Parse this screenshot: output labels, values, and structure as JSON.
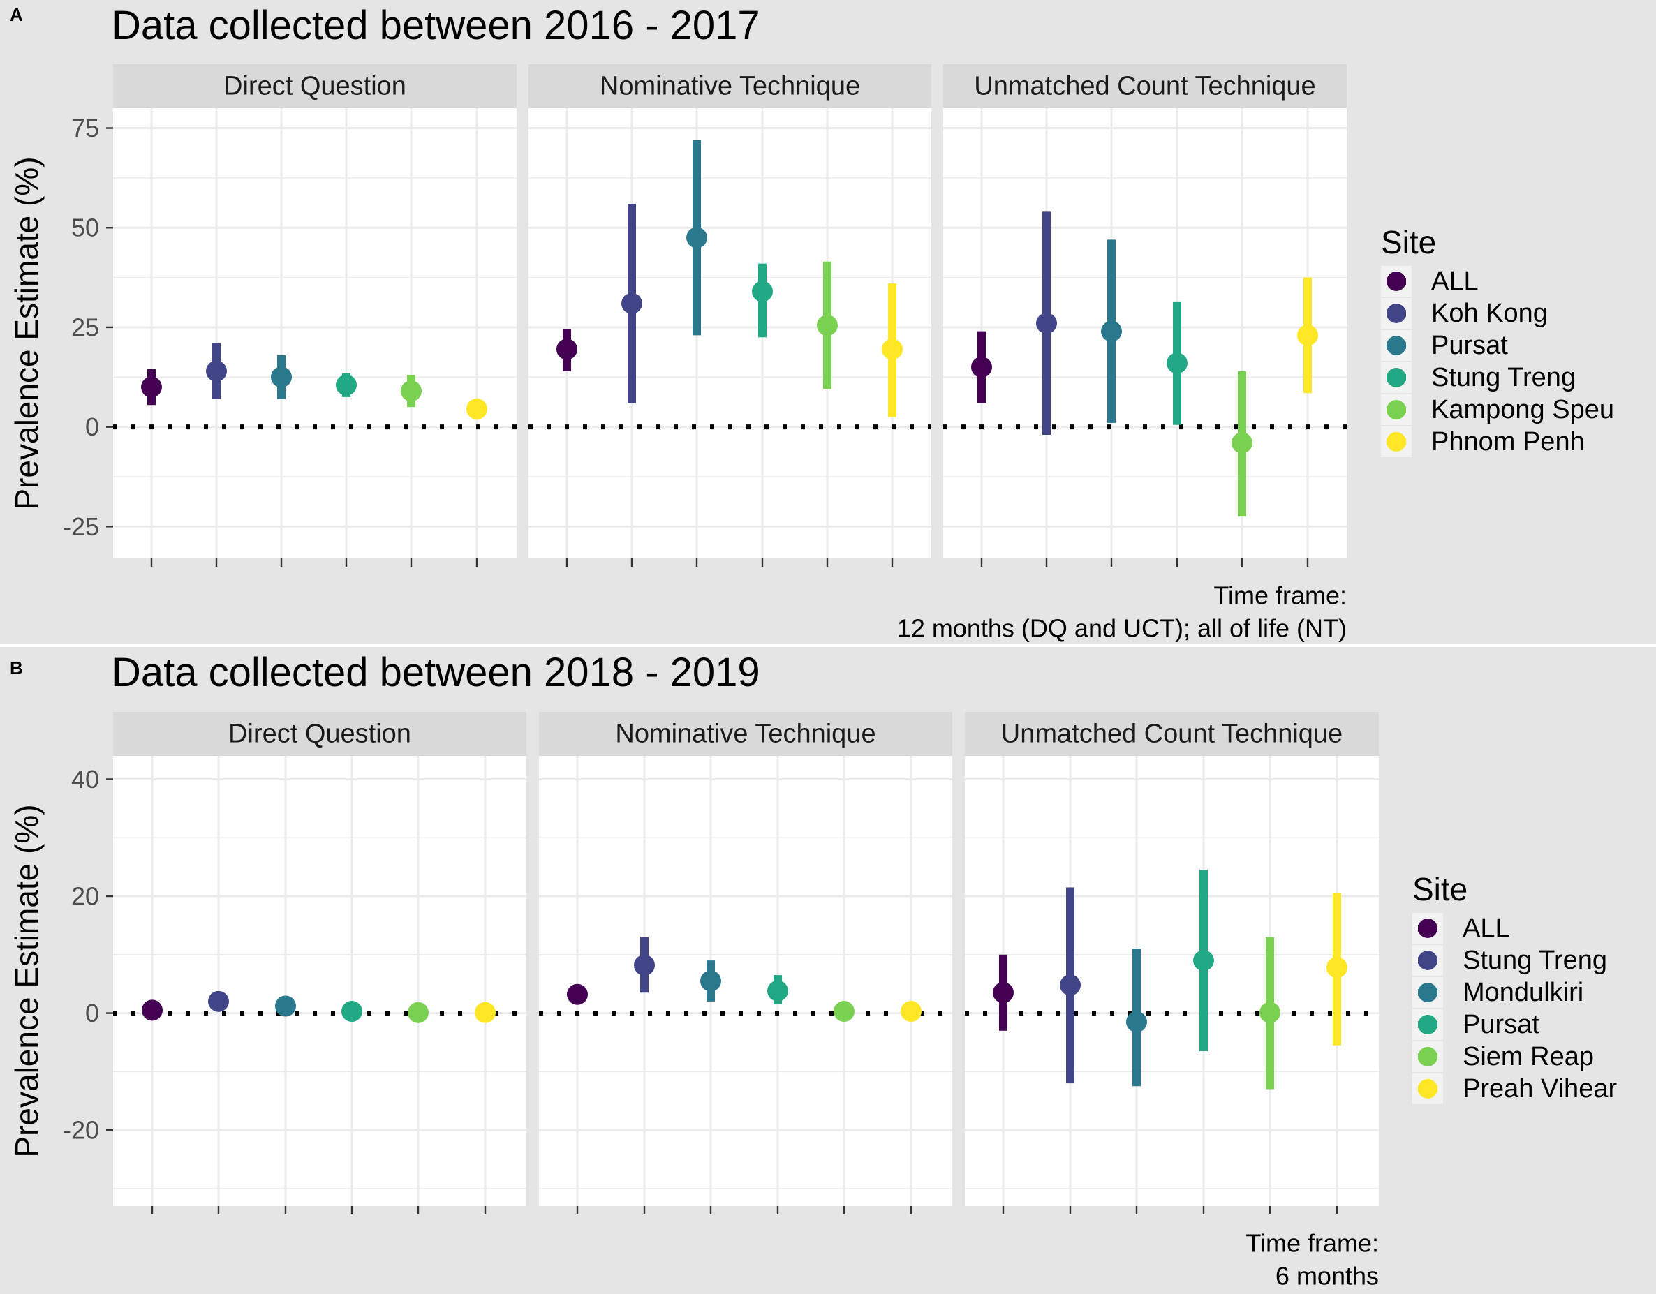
{
  "colors": {
    "background": "#e5e5e5",
    "panel": "#ffffff",
    "strip": "#d9d9d9",
    "grid": "#ebebeb",
    "tick": "#333333",
    "tick_label": "#4d4d4d",
    "text": "#000000",
    "refline": "#000000",
    "palette": [
      "#440154",
      "#414487",
      "#2A788E",
      "#22A884",
      "#7AD151",
      "#FDE725"
    ]
  },
  "chart_data": [
    {
      "type": "scatter",
      "tag": "A",
      "title": "Data collected between 2016 - 2017",
      "ylabel": "Prevalence Estimate (%)",
      "ylim": [
        -33,
        80
      ],
      "yticks": [
        -25,
        0,
        25,
        50,
        75
      ],
      "ytick_labels": [
        "-25",
        "0",
        "25",
        "50",
        "75"
      ],
      "reference_line": 0,
      "grid": true,
      "legend": {
        "title": "Site",
        "entries": [
          "ALL",
          "Koh Kong",
          "Pursat",
          "Stung Treng",
          "Kampong Speu",
          "Phnom Penh"
        ],
        "placement": "right"
      },
      "caption": [
        "Time frame:",
        "12 months (DQ and UCT); all of life (NT)"
      ],
      "facets": [
        {
          "label": "Direct Question",
          "series": [
            {
              "site": "ALL",
              "estimate": 10,
              "lower": 5.5,
              "upper": 14.5
            },
            {
              "site": "Koh Kong",
              "estimate": 14,
              "lower": 7,
              "upper": 21
            },
            {
              "site": "Pursat",
              "estimate": 12.5,
              "lower": 7,
              "upper": 18
            },
            {
              "site": "Stung Treng",
              "estimate": 10.5,
              "lower": 7.5,
              "upper": 13.5
            },
            {
              "site": "Kampong Speu",
              "estimate": 9,
              "lower": 5,
              "upper": 13
            },
            {
              "site": "Phnom Penh",
              "estimate": 4.5,
              "lower": 4.5,
              "upper": 4.5
            }
          ]
        },
        {
          "label": "Nominative Technique",
          "series": [
            {
              "site": "ALL",
              "estimate": 19.5,
              "lower": 14,
              "upper": 24.5
            },
            {
              "site": "Koh Kong",
              "estimate": 31,
              "lower": 6,
              "upper": 56
            },
            {
              "site": "Pursat",
              "estimate": 47.5,
              "lower": 23,
              "upper": 72
            },
            {
              "site": "Stung Treng",
              "estimate": 34,
              "lower": 22.5,
              "upper": 41
            },
            {
              "site": "Kampong Speu",
              "estimate": 25.5,
              "lower": 9.5,
              "upper": 41.5
            },
            {
              "site": "Phnom Penh",
              "estimate": 19.5,
              "lower": 2.5,
              "upper": 36
            }
          ]
        },
        {
          "label": "Unmatched Count Technique",
          "series": [
            {
              "site": "ALL",
              "estimate": 15,
              "lower": 6,
              "upper": 24
            },
            {
              "site": "Koh Kong",
              "estimate": 26,
              "lower": -2,
              "upper": 54
            },
            {
              "site": "Pursat",
              "estimate": 24,
              "lower": 1,
              "upper": 47
            },
            {
              "site": "Stung Treng",
              "estimate": 16,
              "lower": 0.5,
              "upper": 31.5
            },
            {
              "site": "Kampong Speu",
              "estimate": -4,
              "lower": -22.5,
              "upper": 14
            },
            {
              "site": "Phnom Penh",
              "estimate": 23,
              "lower": 8.5,
              "upper": 37.5
            }
          ]
        }
      ]
    },
    {
      "type": "scatter",
      "tag": "B",
      "title": "Data collected between 2018 - 2019",
      "ylabel": "Prevalence Estimate (%)",
      "ylim": [
        -33,
        44
      ],
      "yticks": [
        -20,
        0,
        20,
        40
      ],
      "ytick_labels": [
        "-20",
        "0",
        "20",
        "40"
      ],
      "reference_line": 0,
      "grid": true,
      "legend": {
        "title": "Site",
        "entries": [
          "ALL",
          "Stung Treng",
          "Mondulkiri",
          "Pursat",
          "Siem Reap",
          "Preah Vihear"
        ],
        "placement": "right"
      },
      "caption": [
        "Time frame:",
        "6 months"
      ],
      "facets": [
        {
          "label": "Direct Question",
          "series": [
            {
              "site": "ALL",
              "estimate": 0.5,
              "lower": 0.5,
              "upper": 0.5
            },
            {
              "site": "Stung Treng",
              "estimate": 2,
              "lower": 0.5,
              "upper": 3.5
            },
            {
              "site": "Mondulkiri",
              "estimate": 1.2,
              "lower": 1.2,
              "upper": 1.2
            },
            {
              "site": "Pursat",
              "estimate": 0.3,
              "lower": 0.3,
              "upper": 0.3
            },
            {
              "site": "Siem Reap",
              "estimate": 0.1,
              "lower": 0.1,
              "upper": 0.1
            },
            {
              "site": "Preah Vihear",
              "estimate": 0.1,
              "lower": 0.1,
              "upper": 0.1
            }
          ]
        },
        {
          "label": "Nominative Technique",
          "series": [
            {
              "site": "ALL",
              "estimate": 3.2,
              "lower": 3.2,
              "upper": 3.2
            },
            {
              "site": "Stung Treng",
              "estimate": 8.2,
              "lower": 3.5,
              "upper": 13
            },
            {
              "site": "Mondulkiri",
              "estimate": 5.5,
              "lower": 2,
              "upper": 9
            },
            {
              "site": "Pursat",
              "estimate": 3.8,
              "lower": 1.5,
              "upper": 6.5
            },
            {
              "site": "Siem Reap",
              "estimate": 0.3,
              "lower": 0.3,
              "upper": 0.3
            },
            {
              "site": "Preah Vihear",
              "estimate": 0.3,
              "lower": 0.3,
              "upper": 0.3
            }
          ]
        },
        {
          "label": "Unmatched Count Technique",
          "series": [
            {
              "site": "ALL",
              "estimate": 3.5,
              "lower": -3,
              "upper": 10
            },
            {
              "site": "Stung Treng",
              "estimate": 4.8,
              "lower": -12,
              "upper": 21.5
            },
            {
              "site": "Mondulkiri",
              "estimate": -1.5,
              "lower": -12.5,
              "upper": 11
            },
            {
              "site": "Pursat",
              "estimate": 9,
              "lower": -6.5,
              "upper": 24.5
            },
            {
              "site": "Siem Reap",
              "estimate": 0.1,
              "lower": -13,
              "upper": 13
            },
            {
              "site": "Preah Vihear",
              "estimate": 7.8,
              "lower": -5.5,
              "upper": 20.5
            }
          ]
        }
      ]
    }
  ]
}
